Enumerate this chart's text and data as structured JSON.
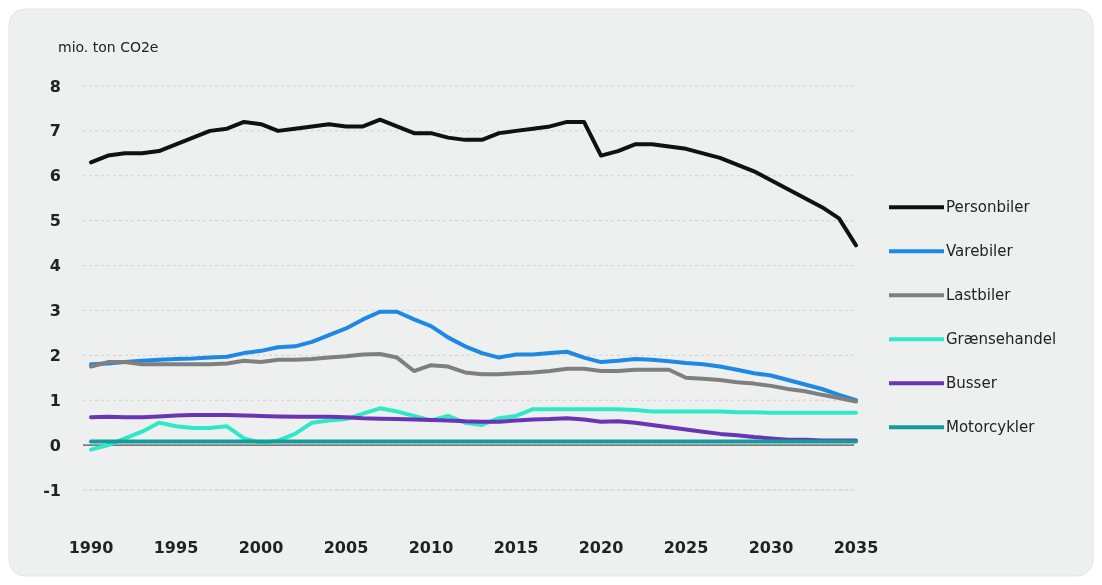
{
  "chart_data": {
    "type": "line",
    "ylabel": "mio. ton CO2e",
    "x": [
      1990,
      1991,
      1992,
      1993,
      1994,
      1995,
      1996,
      1997,
      1998,
      1999,
      2000,
      2001,
      2002,
      2003,
      2004,
      2005,
      2006,
      2007,
      2008,
      2009,
      2010,
      2011,
      2012,
      2013,
      2014,
      2015,
      2016,
      2017,
      2018,
      2019,
      2020,
      2021,
      2022,
      2023,
      2024,
      2025,
      2026,
      2027,
      2028,
      2029,
      2030,
      2031,
      2032,
      2033,
      2034,
      2035
    ],
    "xlim": [
      1990,
      2035
    ],
    "xticks": [
      1990,
      1995,
      2000,
      2005,
      2010,
      2015,
      2020,
      2025,
      2030,
      2035
    ],
    "ylim": [
      -1,
      8
    ],
    "yticks": [
      -1,
      0,
      1,
      2,
      3,
      4,
      5,
      6,
      7,
      8
    ],
    "grid": "y",
    "legend": "right",
    "line_style": "solid",
    "marker": "none",
    "series": [
      {
        "name": "Personbiler",
        "color": "#111111",
        "values": [
          6.3,
          6.45,
          6.5,
          6.5,
          6.55,
          6.7,
          6.85,
          7.0,
          7.05,
          7.2,
          7.15,
          7.0,
          7.05,
          7.1,
          7.15,
          7.1,
          7.1,
          7.25,
          7.1,
          6.95,
          6.95,
          6.85,
          6.8,
          6.8,
          6.95,
          7.0,
          7.05,
          7.1,
          7.2,
          7.2,
          6.45,
          6.55,
          6.7,
          6.7,
          6.65,
          6.6,
          6.5,
          6.4,
          6.25,
          6.1,
          5.9,
          5.7,
          5.5,
          5.3,
          5.05,
          4.45
        ]
      },
      {
        "name": "Varebiler",
        "color": "#1e88e5",
        "values": [
          1.8,
          1.82,
          1.85,
          1.88,
          1.9,
          1.92,
          1.93,
          1.95,
          1.97,
          2.05,
          2.1,
          2.18,
          2.2,
          2.3,
          2.45,
          2.6,
          2.8,
          2.97,
          2.97,
          2.8,
          2.65,
          2.4,
          2.2,
          2.05,
          1.95,
          2.02,
          2.02,
          2.05,
          2.08,
          1.95,
          1.85,
          1.88,
          1.92,
          1.9,
          1.87,
          1.83,
          1.8,
          1.75,
          1.68,
          1.6,
          1.55,
          1.45,
          1.35,
          1.25,
          1.12,
          1.0
        ]
      },
      {
        "name": "Lastbiler",
        "color": "#7f7f7f",
        "values": [
          1.75,
          1.85,
          1.85,
          1.8,
          1.8,
          1.8,
          1.8,
          1.8,
          1.82,
          1.88,
          1.85,
          1.9,
          1.9,
          1.92,
          1.95,
          1.98,
          2.02,
          2.03,
          1.95,
          1.65,
          1.78,
          1.75,
          1.62,
          1.58,
          1.58,
          1.6,
          1.62,
          1.65,
          1.7,
          1.7,
          1.65,
          1.65,
          1.68,
          1.68,
          1.68,
          1.5,
          1.48,
          1.45,
          1.4,
          1.37,
          1.32,
          1.25,
          1.2,
          1.12,
          1.05,
          0.97
        ]
      },
      {
        "name": "Grænsehandel",
        "color": "#2ee8c8",
        "values": [
          -0.1,
          0.0,
          0.15,
          0.3,
          0.5,
          0.42,
          0.38,
          0.38,
          0.42,
          0.15,
          0.05,
          0.1,
          0.25,
          0.5,
          0.55,
          0.58,
          0.7,
          0.82,
          0.75,
          0.65,
          0.55,
          0.65,
          0.5,
          0.45,
          0.6,
          0.65,
          0.8,
          0.8,
          0.8,
          0.8,
          0.8,
          0.8,
          0.78,
          0.75,
          0.75,
          0.75,
          0.75,
          0.75,
          0.73,
          0.73,
          0.72,
          0.72,
          0.72,
          0.72,
          0.72,
          0.72
        ]
      },
      {
        "name": "Busser",
        "color": "#6a35b5",
        "values": [
          0.62,
          0.63,
          0.62,
          0.62,
          0.64,
          0.66,
          0.67,
          0.67,
          0.67,
          0.66,
          0.65,
          0.64,
          0.63,
          0.63,
          0.63,
          0.62,
          0.6,
          0.59,
          0.58,
          0.57,
          0.56,
          0.55,
          0.53,
          0.52,
          0.52,
          0.55,
          0.57,
          0.58,
          0.6,
          0.57,
          0.52,
          0.53,
          0.5,
          0.45,
          0.4,
          0.35,
          0.3,
          0.25,
          0.22,
          0.18,
          0.15,
          0.12,
          0.12,
          0.1,
          0.1,
          0.1
        ]
      },
      {
        "name": "Motorcykler",
        "color": "#149c9c",
        "values": [
          0.08,
          0.08,
          0.08,
          0.08,
          0.08,
          0.08,
          0.08,
          0.08,
          0.08,
          0.08,
          0.08,
          0.08,
          0.08,
          0.08,
          0.08,
          0.08,
          0.08,
          0.08,
          0.08,
          0.08,
          0.08,
          0.08,
          0.08,
          0.08,
          0.08,
          0.08,
          0.08,
          0.08,
          0.08,
          0.08,
          0.08,
          0.08,
          0.08,
          0.08,
          0.08,
          0.08,
          0.08,
          0.08,
          0.08,
          0.08,
          0.08,
          0.08,
          0.08,
          0.08,
          0.08,
          0.08
        ]
      }
    ]
  }
}
